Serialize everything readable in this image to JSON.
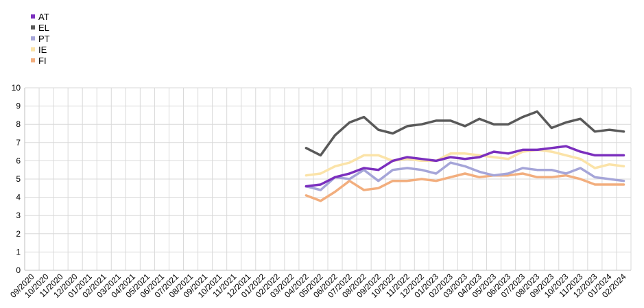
{
  "chart_data": {
    "type": "line",
    "title": "",
    "xlabel": "",
    "ylabel": "",
    "ylim": [
      0,
      10
    ],
    "yticks": [
      0,
      1,
      2,
      3,
      4,
      5,
      6,
      7,
      8,
      9,
      10
    ],
    "grid": true,
    "legend_position": "top-left",
    "x": [
      "09/2020",
      "10/2020",
      "11/2020",
      "12/2020",
      "01/2021",
      "02/2021",
      "03/2021",
      "04/2021",
      "05/2021",
      "06/2021",
      "07/2021",
      "08/2021",
      "09/2021",
      "10/2021",
      "11/2021",
      "12/2021",
      "01/2022",
      "02/2022",
      "03/2022",
      "04/2022",
      "05/2022",
      "06/2022",
      "07/2022",
      "08/2022",
      "09/2022",
      "10/2022",
      "11/2022",
      "12/2022",
      "01/2023",
      "02/2023",
      "03/2023",
      "04/2023",
      "05/2023",
      "06/2023",
      "07/2023",
      "08/2023",
      "09/2023",
      "10/2023",
      "11/2023",
      "12/2023",
      "01/2024",
      "02/2024"
    ],
    "series": [
      {
        "name": "AT",
        "color": "#7B2FBE",
        "values": [
          null,
          null,
          null,
          null,
          null,
          null,
          null,
          null,
          null,
          null,
          null,
          null,
          null,
          null,
          null,
          null,
          null,
          null,
          null,
          4.6,
          4.7,
          5.1,
          5.3,
          5.6,
          5.5,
          6.0,
          6.2,
          6.1,
          6.0,
          6.2,
          6.1,
          6.2,
          6.5,
          6.4,
          6.6,
          6.6,
          6.7,
          6.8,
          6.5,
          6.3,
          6.3,
          6.3
        ]
      },
      {
        "name": "EL",
        "color": "#595959",
        "values": [
          null,
          null,
          null,
          null,
          null,
          null,
          null,
          null,
          null,
          null,
          null,
          null,
          null,
          null,
          null,
          null,
          null,
          null,
          null,
          6.7,
          6.3,
          7.4,
          8.1,
          8.4,
          7.7,
          7.5,
          7.9,
          8.0,
          8.2,
          8.2,
          7.9,
          8.3,
          8.0,
          8.0,
          8.4,
          8.7,
          7.8,
          8.1,
          8.3,
          7.6,
          7.7,
          7.6
        ]
      },
      {
        "name": "PT",
        "color": "#A5A5D8",
        "values": [
          null,
          null,
          null,
          null,
          null,
          null,
          null,
          null,
          null,
          null,
          null,
          null,
          null,
          null,
          null,
          null,
          null,
          null,
          null,
          4.6,
          4.4,
          5.1,
          5.0,
          5.5,
          4.9,
          5.5,
          5.6,
          5.5,
          5.3,
          5.9,
          5.7,
          5.4,
          5.2,
          5.3,
          5.6,
          5.5,
          5.5,
          5.3,
          5.6,
          5.1,
          5.0,
          4.9
        ]
      },
      {
        "name": "IE",
        "color": "#FBE3A8",
        "values": [
          null,
          null,
          null,
          null,
          null,
          null,
          null,
          null,
          null,
          null,
          null,
          null,
          null,
          null,
          null,
          null,
          null,
          null,
          null,
          5.2,
          5.3,
          5.7,
          5.9,
          6.3,
          6.3,
          6.0,
          6.1,
          6.0,
          6.0,
          6.4,
          6.4,
          6.3,
          6.2,
          6.1,
          6.5,
          6.6,
          6.5,
          6.3,
          6.1,
          5.6,
          5.8,
          5.7
        ]
      },
      {
        "name": "FI",
        "color": "#F2AE7E",
        "values": [
          null,
          null,
          null,
          null,
          null,
          null,
          null,
          null,
          null,
          null,
          null,
          null,
          null,
          null,
          null,
          null,
          null,
          null,
          null,
          4.1,
          3.8,
          4.3,
          4.9,
          4.4,
          4.5,
          4.9,
          4.9,
          5.0,
          4.9,
          5.1,
          5.3,
          5.1,
          5.2,
          5.2,
          5.3,
          5.1,
          5.1,
          5.2,
          5.0,
          4.7,
          4.7,
          4.7
        ]
      }
    ]
  }
}
